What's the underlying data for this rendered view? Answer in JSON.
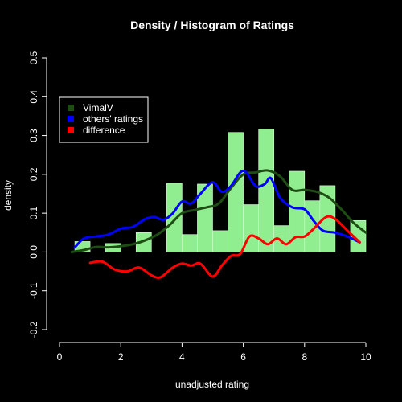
{
  "chart_data": {
    "type": "bar",
    "title": "Density / Histogram of Ratings",
    "xlabel": "unadjusted rating",
    "ylabel": "density",
    "xlim": [
      0,
      10
    ],
    "ylim": [
      -0.2,
      0.5
    ],
    "xticks": [
      0,
      2,
      4,
      6,
      8,
      10
    ],
    "yticks": [
      -0.2,
      -0.1,
      0.0,
      0.1,
      0.2,
      0.3,
      0.4,
      0.5
    ],
    "ytick_labels": [
      "-0.2",
      "-0.1",
      "0.0",
      "0.1",
      "0.2",
      "0.3",
      "0.4",
      "0.5"
    ],
    "grid": false,
    "legend_position": "top-left",
    "histogram": {
      "bin_width": 0.5,
      "bins": [
        {
          "x0": 0.5,
          "x1": 1.0,
          "value": 0.027
        },
        {
          "x0": 1.5,
          "x1": 2.0,
          "value": 0.022
        },
        {
          "x0": 2.5,
          "x1": 3.0,
          "value": 0.05
        },
        {
          "x0": 3.5,
          "x1": 4.0,
          "value": 0.177
        },
        {
          "x0": 4.0,
          "x1": 4.5,
          "value": 0.045
        },
        {
          "x0": 4.5,
          "x1": 5.0,
          "value": 0.175
        },
        {
          "x0": 5.0,
          "x1": 5.5,
          "value": 0.055
        },
        {
          "x0": 5.5,
          "x1": 6.0,
          "value": 0.308
        },
        {
          "x0": 6.0,
          "x1": 6.5,
          "value": 0.122
        },
        {
          "x0": 6.5,
          "x1": 7.0,
          "value": 0.317
        },
        {
          "x0": 7.0,
          "x1": 7.5,
          "value": 0.068
        },
        {
          "x0": 7.5,
          "x1": 8.0,
          "value": 0.208
        },
        {
          "x0": 8.0,
          "x1": 8.5,
          "value": 0.132
        },
        {
          "x0": 8.5,
          "x1": 9.0,
          "value": 0.171
        },
        {
          "x0": 9.5,
          "x1": 10.0,
          "value": 0.081
        }
      ]
    },
    "series": [
      {
        "name": "VimalV",
        "color": "#1e4d14",
        "x": [
          0.4,
          0.8,
          1.2,
          1.6,
          2.0,
          2.4,
          2.8,
          3.2,
          3.6,
          4.0,
          4.4,
          4.8,
          5.2,
          5.6,
          6.0,
          6.4,
          6.8,
          7.2,
          7.6,
          8.0,
          8.4,
          8.8,
          9.2,
          9.6,
          10.0
        ],
        "y": [
          0.0,
          0.005,
          0.013,
          0.012,
          0.015,
          0.02,
          0.03,
          0.045,
          0.07,
          0.1,
          0.108,
          0.115,
          0.125,
          0.165,
          0.2,
          0.205,
          0.21,
          0.195,
          0.16,
          0.16,
          0.155,
          0.14,
          0.11,
          0.075,
          0.05
        ]
      },
      {
        "name": "others' ratings",
        "color": "#0000ff",
        "x": [
          0.5,
          0.8,
          1.2,
          1.6,
          2.0,
          2.4,
          2.8,
          3.1,
          3.4,
          3.7,
          4.0,
          4.3,
          4.6,
          5.0,
          5.3,
          5.6,
          5.9,
          6.1,
          6.4,
          6.7,
          6.9,
          7.2,
          7.6,
          8.0,
          8.3,
          8.6,
          9.0,
          9.4,
          9.8
        ],
        "y": [
          0.012,
          0.035,
          0.04,
          0.045,
          0.06,
          0.065,
          0.085,
          0.09,
          0.083,
          0.1,
          0.13,
          0.125,
          0.15,
          0.18,
          0.155,
          0.17,
          0.205,
          0.205,
          0.17,
          0.175,
          0.19,
          0.14,
          0.115,
          0.11,
          0.08,
          0.055,
          0.05,
          0.04,
          0.025
        ]
      },
      {
        "name": "difference",
        "color": "#ff0000",
        "x": [
          1.0,
          1.4,
          1.8,
          2.2,
          2.6,
          3.0,
          3.3,
          3.7,
          4.0,
          4.3,
          4.6,
          5.0,
          5.3,
          5.6,
          5.9,
          6.2,
          6.5,
          6.8,
          7.1,
          7.4,
          7.7,
          8.0,
          8.3,
          8.7,
          9.0,
          9.4,
          9.8
        ],
        "y": [
          -0.028,
          -0.025,
          -0.045,
          -0.05,
          -0.04,
          -0.06,
          -0.065,
          -0.04,
          -0.03,
          -0.035,
          -0.03,
          -0.063,
          -0.035,
          -0.01,
          -0.005,
          0.04,
          0.035,
          0.02,
          0.035,
          0.02,
          0.038,
          0.04,
          0.06,
          0.09,
          0.085,
          0.055,
          0.025
        ]
      }
    ]
  }
}
